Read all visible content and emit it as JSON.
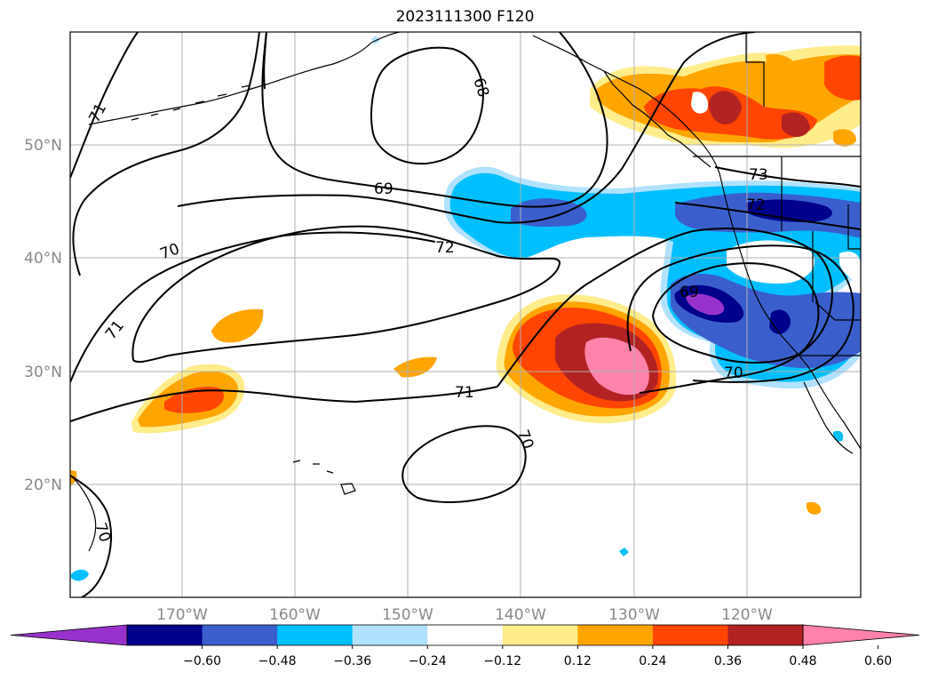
{
  "title": "2023111300 F120",
  "map": {
    "lon_labels": [
      "170°W",
      "160°W",
      "150°W",
      "140°W",
      "130°W",
      "120°W"
    ],
    "lat_labels": [
      "50°N",
      "40°N",
      "30°N",
      "20°N"
    ],
    "extent": {
      "lon": [
        -180,
        -110
      ],
      "lat": [
        10,
        60
      ]
    },
    "gridlines": true
  },
  "contours": {
    "labels": [
      "71",
      "68",
      "69",
      "70",
      "72",
      "73",
      "72",
      "69",
      "71",
      "71",
      "70",
      "70",
      "70"
    ]
  },
  "colorbar": {
    "tick_labels": [
      "−0.60",
      "−0.48",
      "−0.36",
      "−0.24",
      "−0.12",
      "0.12",
      "0.24",
      "0.36",
      "0.48",
      "0.60"
    ],
    "colors": [
      "#9932cc",
      "#00008b",
      "#3a5fcd",
      "#00bfff",
      "#b0e2ff",
      "#ffffff",
      "#ffec8b",
      "#ffa500",
      "#ff4500",
      "#b22222",
      "#ff82ab"
    ],
    "extend": "both"
  }
}
